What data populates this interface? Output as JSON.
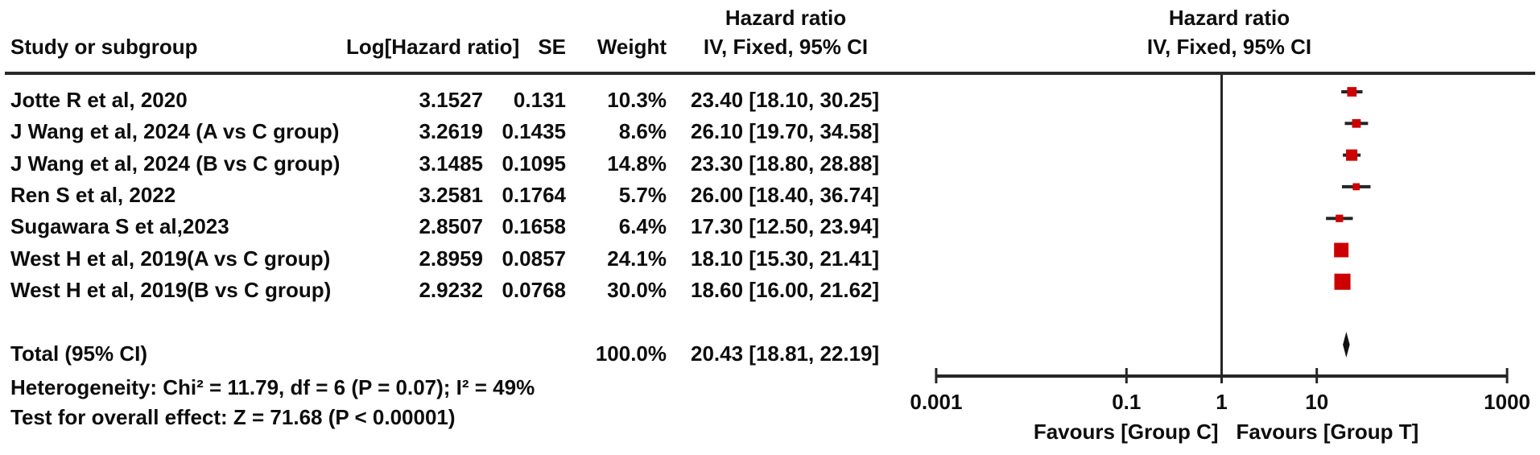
{
  "figure": {
    "headers": {
      "study": "Study or subgroup",
      "log_hr": "Log[Hazard ratio]",
      "se": "SE",
      "weight": "Weight",
      "effect_line1": "Hazard ratio",
      "effect_line2": "IV, Fixed, 95% CI",
      "plot_line1": "Hazard ratio",
      "plot_line2": "IV, Fixed, 95% CI"
    },
    "total_row": {
      "label": "Total (95% CI)",
      "weight": "100.0%",
      "estimate": "20.43 [18.81, 22.19]"
    },
    "footnotes": {
      "heterogeneity": "Heterogeneity: Chi² = 11.79, df = 6 (P = 0.07); I² = 49%",
      "overall_effect": "Test for overall effect: Z = 71.68 (P < 0.00001)"
    }
  },
  "chart_data": {
    "type": "forest",
    "effect_measure": "Hazard ratio",
    "method": "IV, Fixed, 95% CI",
    "x_axis": {
      "scale": "log",
      "range": [
        0.001,
        1000
      ],
      "tick_values": [
        0.001,
        0.1,
        1,
        10,
        1000
      ],
      "tick_labels": [
        "0.001",
        "0.1",
        "1",
        "10",
        "1000"
      ],
      "ref_line": 1
    },
    "favours_left": "Favours [Group C]",
    "favours_right": "Favours [Group T]",
    "marker_color": "#cc0000",
    "line_color": "#262626",
    "studies": [
      {
        "name": "Jotte R et al, 2020",
        "log_hr": "3.1527",
        "se": "0.131",
        "weight_label": "10.3%",
        "estimate_label": "23.40 [18.10, 30.25]",
        "hr": 23.4,
        "ci_low": 18.1,
        "ci_high": 30.25,
        "weight_pct": 10.3
      },
      {
        "name": "J Wang et al, 2024 (A vs C group)",
        "log_hr": "3.2619",
        "se": "0.1435",
        "weight_label": "8.6%",
        "estimate_label": "26.10 [19.70, 34.58]",
        "hr": 26.1,
        "ci_low": 19.7,
        "ci_high": 34.58,
        "weight_pct": 8.6
      },
      {
        "name": "J Wang et al, 2024 (B vs C group)",
        "log_hr": "3.1485",
        "se": "0.1095",
        "weight_label": "14.8%",
        "estimate_label": "23.30 [18.80, 28.88]",
        "hr": 23.3,
        "ci_low": 18.8,
        "ci_high": 28.88,
        "weight_pct": 14.8
      },
      {
        "name": "Ren S et al, 2022",
        "log_hr": "3.2581",
        "se": "0.1764",
        "weight_label": "5.7%",
        "estimate_label": "26.00 [18.40, 36.74]",
        "hr": 26.0,
        "ci_low": 18.4,
        "ci_high": 36.74,
        "weight_pct": 5.7
      },
      {
        "name": "Sugawara S et al,2023",
        "log_hr": "2.8507",
        "se": "0.1658",
        "weight_label": "6.4%",
        "estimate_label": "17.30 [12.50, 23.94]",
        "hr": 17.3,
        "ci_low": 12.5,
        "ci_high": 23.94,
        "weight_pct": 6.4
      },
      {
        "name": "West H et al, 2019(A vs C group)",
        "log_hr": "2.8959",
        "se": "0.0857",
        "weight_label": "24.1%",
        "estimate_label": "18.10 [15.30, 21.41]",
        "hr": 18.1,
        "ci_low": 15.3,
        "ci_high": 21.41,
        "weight_pct": 24.1
      },
      {
        "name": "West H et al, 2019(B vs C group)",
        "log_hr": "2.9232",
        "se": "0.0768",
        "weight_label": "30.0%",
        "estimate_label": "18.60 [16.00, 21.62]",
        "hr": 18.6,
        "ci_low": 16.0,
        "ci_high": 21.62,
        "weight_pct": 30.0
      }
    ],
    "total": {
      "label": "Total (95% CI)",
      "weight_pct": 100.0,
      "hr": 20.43,
      "ci_low": 18.81,
      "ci_high": 22.19
    }
  }
}
